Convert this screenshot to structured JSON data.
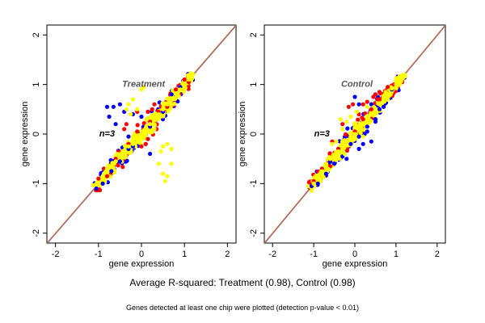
{
  "chart_data": [
    {
      "type": "scatter",
      "title": "Treatment",
      "annotation": "n=3",
      "xlabel": "gene expression",
      "ylabel": "gene expression",
      "xlim": [
        -2.2,
        2.2
      ],
      "ylim": [
        -2.2,
        2.2
      ],
      "xticks": [
        -2,
        -1,
        0,
        1,
        2
      ],
      "yticks": [
        -2,
        -1,
        0,
        1,
        2
      ],
      "grid": false,
      "reference_line": {
        "x": [
          -2.2,
          2.2
        ],
        "y": [
          -2.2,
          2.2
        ],
        "color": "#d2691e"
      },
      "series": [
        {
          "color": "#ffff00",
          "values": [
            [
              -1.05,
              -1.0
            ],
            [
              -0.9,
              -0.85
            ],
            [
              -0.8,
              -0.7
            ],
            [
              -0.7,
              -0.65
            ],
            [
              -0.6,
              -0.55
            ],
            [
              -0.5,
              -0.45
            ],
            [
              -0.4,
              -0.35
            ],
            [
              -0.3,
              -0.25
            ],
            [
              -0.2,
              -0.2
            ],
            [
              -0.1,
              -0.05
            ],
            [
              0.0,
              0.0
            ],
            [
              0.1,
              0.12
            ],
            [
              0.2,
              0.2
            ],
            [
              0.3,
              0.3
            ],
            [
              0.4,
              0.4
            ],
            [
              0.5,
              0.5
            ],
            [
              0.6,
              0.6
            ],
            [
              0.7,
              0.72
            ],
            [
              0.8,
              0.82
            ],
            [
              0.9,
              0.9
            ],
            [
              1.0,
              1.0
            ],
            [
              1.1,
              1.1
            ],
            [
              1.2,
              1.2
            ],
            [
              -0.35,
              0.5
            ],
            [
              -0.3,
              0.6
            ],
            [
              -0.2,
              0.7
            ],
            [
              0.05,
              0.95
            ],
            [
              -0.1,
              0.5
            ],
            [
              0.3,
              0.1
            ],
            [
              0.45,
              -0.35
            ],
            [
              0.5,
              -0.25
            ],
            [
              0.6,
              -0.2
            ],
            [
              0.7,
              -0.3
            ],
            [
              0.4,
              -0.6
            ],
            [
              0.5,
              -0.8
            ],
            [
              0.7,
              -0.6
            ],
            [
              0.55,
              -0.95
            ],
            [
              0.6,
              -0.85
            ],
            [
              0.0,
              0.9
            ],
            [
              -0.25,
              0.4
            ]
          ]
        },
        {
          "color": "#ff0000",
          "values": [
            [
              -1.0,
              -0.9
            ],
            [
              -0.8,
              -0.85
            ],
            [
              -0.6,
              -0.5
            ],
            [
              -0.3,
              -0.2
            ],
            [
              -0.1,
              0.05
            ],
            [
              0.2,
              0.25
            ],
            [
              0.4,
              0.45
            ],
            [
              0.6,
              0.55
            ],
            [
              0.8,
              0.9
            ],
            [
              1.0,
              1.1
            ],
            [
              1.1,
              1.05
            ],
            [
              0.1,
              -0.2
            ],
            [
              0.0,
              -0.25
            ],
            [
              0.15,
              -0.1
            ],
            [
              -0.1,
              0.45
            ],
            [
              -0.35,
              0.2
            ],
            [
              -0.4,
              0.1
            ],
            [
              0.3,
              0.6
            ],
            [
              0.25,
              0.5
            ],
            [
              0.35,
              0.1
            ],
            [
              0.15,
              0.45
            ]
          ]
        },
        {
          "color": "#0000ff",
          "values": [
            [
              -1.05,
              -1.1
            ],
            [
              -0.9,
              -1.0
            ],
            [
              -0.7,
              -0.75
            ],
            [
              -0.5,
              -0.55
            ],
            [
              -0.3,
              -0.3
            ],
            [
              -0.2,
              -0.25
            ],
            [
              0.2,
              0.15
            ],
            [
              0.5,
              0.45
            ],
            [
              0.7,
              0.8
            ],
            [
              0.9,
              0.95
            ],
            [
              -0.8,
              0.55
            ],
            [
              -0.75,
              0.35
            ],
            [
              -0.5,
              0.6
            ],
            [
              -0.65,
              0.55
            ],
            [
              -0.2,
              0.4
            ],
            [
              -0.3,
              -0.05
            ],
            [
              0.1,
              -0.2
            ],
            [
              0.2,
              -0.4
            ],
            [
              -0.6,
              0.2
            ],
            [
              -0.4,
              0.45
            ],
            [
              0.0,
              0.35
            ]
          ]
        }
      ]
    },
    {
      "type": "scatter",
      "title": "Control",
      "annotation": "n=3",
      "xlabel": "gene expression",
      "ylabel": "gene expression",
      "xlim": [
        -2.2,
        2.2
      ],
      "ylim": [
        -2.2,
        2.2
      ],
      "xticks": [
        -2,
        -1,
        0,
        1,
        2
      ],
      "yticks": [
        -2,
        -1,
        0,
        1,
        2
      ],
      "grid": false,
      "reference_line": {
        "x": [
          -2.2,
          2.2
        ],
        "y": [
          -2.2,
          2.2
        ],
        "color": "#d2691e"
      },
      "series": [
        {
          "color": "#ffff00",
          "values": [
            [
              -1.0,
              -1.0
            ],
            [
              -0.9,
              -0.85
            ],
            [
              -0.8,
              -0.75
            ],
            [
              -0.7,
              -0.65
            ],
            [
              -0.6,
              -0.5
            ],
            [
              -0.5,
              -0.45
            ],
            [
              -0.4,
              -0.35
            ],
            [
              -0.3,
              -0.25
            ],
            [
              -0.2,
              -0.15
            ],
            [
              -0.1,
              -0.05
            ],
            [
              0.0,
              0.0
            ],
            [
              0.1,
              0.12
            ],
            [
              0.2,
              0.2
            ],
            [
              0.3,
              0.3
            ],
            [
              0.4,
              0.4
            ],
            [
              0.5,
              0.5
            ],
            [
              0.6,
              0.62
            ],
            [
              0.7,
              0.72
            ],
            [
              0.8,
              0.8
            ],
            [
              0.9,
              0.92
            ],
            [
              1.0,
              1.0
            ],
            [
              1.1,
              1.08
            ],
            [
              1.2,
              1.2
            ],
            [
              -0.3,
              0.1
            ],
            [
              -0.2,
              0.25
            ],
            [
              -0.1,
              0.35
            ],
            [
              0.05,
              0.45
            ],
            [
              -0.35,
              0.3
            ],
            [
              0.0,
              -0.1
            ],
            [
              0.2,
              -0.05
            ],
            [
              -0.55,
              -0.2
            ],
            [
              -0.45,
              -0.15
            ],
            [
              -0.65,
              -0.7
            ],
            [
              0.3,
              0.55
            ],
            [
              -0.25,
              -0.4
            ]
          ]
        },
        {
          "color": "#ff0000",
          "values": [
            [
              -1.0,
              -0.95
            ],
            [
              -0.8,
              -0.7
            ],
            [
              -0.6,
              -0.65
            ],
            [
              -0.4,
              -0.3
            ],
            [
              -0.2,
              -0.15
            ],
            [
              0.0,
              0.05
            ],
            [
              0.2,
              0.3
            ],
            [
              0.4,
              0.5
            ],
            [
              0.6,
              0.7
            ],
            [
              0.8,
              0.95
            ],
            [
              0.95,
              1.0
            ],
            [
              0.5,
              0.8
            ],
            [
              0.6,
              0.85
            ],
            [
              0.45,
              0.75
            ],
            [
              0.2,
              0.6
            ],
            [
              0.3,
              0.65
            ],
            [
              -0.15,
              0.55
            ],
            [
              -0.3,
              0.2
            ],
            [
              0.55,
              0.7
            ],
            [
              0.1,
              0.4
            ],
            [
              -0.05,
              0.6
            ],
            [
              -0.55,
              -0.15
            ]
          ]
        },
        {
          "color": "#0000ff",
          "values": [
            [
              -1.05,
              -1.05
            ],
            [
              -0.9,
              -1.0
            ],
            [
              -0.7,
              -0.8
            ],
            [
              -0.5,
              -0.6
            ],
            [
              -0.3,
              -0.45
            ],
            [
              -0.1,
              -0.2
            ],
            [
              0.1,
              -0.05
            ],
            [
              0.3,
              0.15
            ],
            [
              0.5,
              0.3
            ],
            [
              0.7,
              0.55
            ],
            [
              0.9,
              0.9
            ],
            [
              0.0,
              0.75
            ],
            [
              0.1,
              0.6
            ],
            [
              0.2,
              -0.2
            ],
            [
              0.1,
              -0.3
            ],
            [
              0.4,
              -0.15
            ],
            [
              0.3,
              0.05
            ],
            [
              0.5,
              0.25
            ],
            [
              -0.6,
              -0.55
            ],
            [
              0.6,
              0.5
            ],
            [
              -0.2,
              -0.5
            ]
          ]
        }
      ]
    }
  ],
  "captions": {
    "main": "Average R-squared: Treatment (0.98), Control (0.98)",
    "sub": "Genes detected at least one chip were plotted (detection p-value < 0.01)"
  }
}
